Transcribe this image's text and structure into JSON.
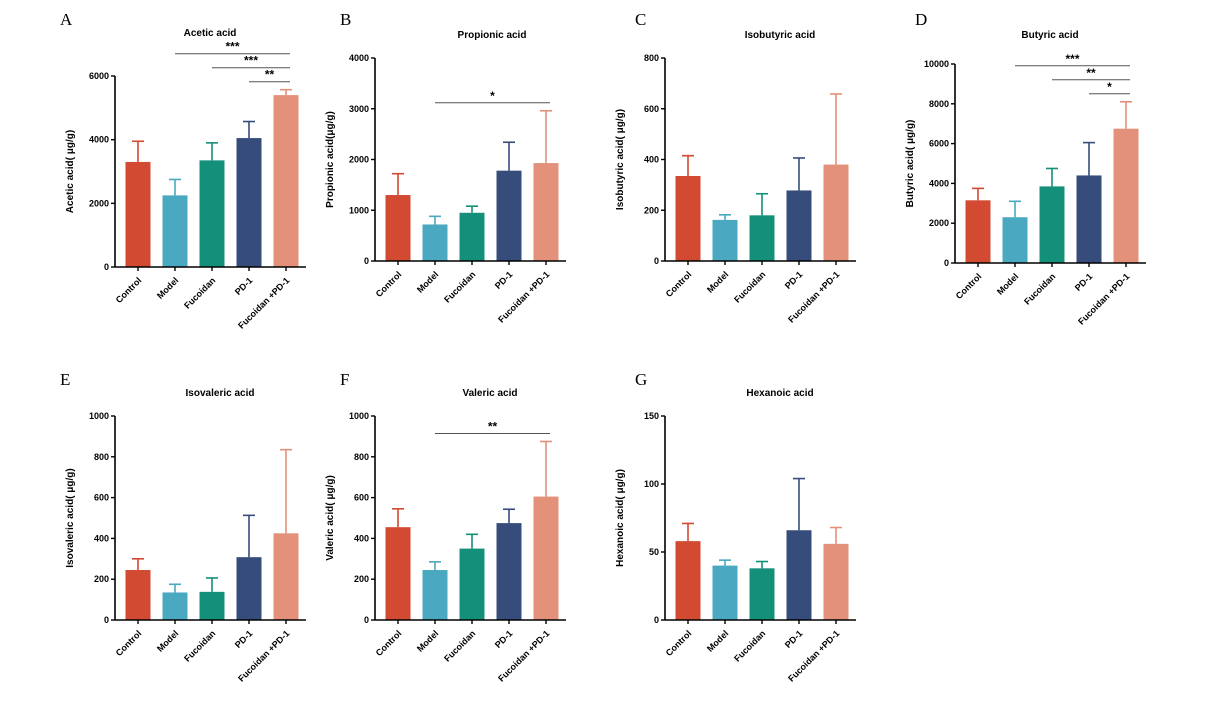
{
  "colors": {
    "Control": "#d24a32",
    "Model": "#4aa8c0",
    "Fucoidan": "#148f7a",
    "PD-1": "#364d7c",
    "Fucoidan +PD-1": "#e3917a"
  },
  "chart_data": [
    {
      "panel": "A",
      "type": "bar",
      "title": "Acetic acid",
      "ylabel": "Acetic acid( μg/g)",
      "categories": [
        "Control",
        "Model",
        "Fucoidan",
        "PD-1",
        "Fucoidan +PD-1"
      ],
      "values": [
        3300,
        2250,
        3350,
        4050,
        5400
      ],
      "errors": [
        650,
        500,
        550,
        520,
        170
      ],
      "ylim": [
        0,
        6000
      ],
      "yticks": [
        0,
        2000,
        4000,
        6000
      ],
      "significance": [
        {
          "from": 1,
          "to": 4,
          "label": "***"
        },
        {
          "from": 2,
          "to": 4,
          "label": "***"
        },
        {
          "from": 3,
          "to": 4,
          "label": "**"
        }
      ]
    },
    {
      "panel": "B",
      "type": "bar",
      "title": "Propionic acid",
      "ylabel": "Propionic acid(μg/g)",
      "categories": [
        "Control",
        "Model",
        "Fucoidan",
        "PD-1",
        "Fucoidan +PD-1"
      ],
      "values": [
        1300,
        720,
        950,
        1780,
        1930
      ],
      "errors": [
        420,
        160,
        130,
        560,
        1030
      ],
      "ylim": [
        0,
        4000
      ],
      "yticks": [
        0,
        1000,
        2000,
        3000,
        4000
      ],
      "significance": [
        {
          "from": 1,
          "to": 4,
          "label": "*"
        }
      ]
    },
    {
      "panel": "C",
      "type": "bar",
      "title": "Isobutyric acid",
      "ylabel": "Isobutyric acid( μg/g)",
      "categories": [
        "Control",
        "Model",
        "Fucoidan",
        "PD-1",
        "Fucoidan +PD-1"
      ],
      "values": [
        335,
        162,
        180,
        278,
        380
      ],
      "errors": [
        80,
        20,
        85,
        128,
        278
      ],
      "ylim": [
        0,
        800
      ],
      "yticks": [
        0,
        200,
        400,
        600,
        800
      ],
      "significance": []
    },
    {
      "panel": "D",
      "type": "bar",
      "title": "Butyric acid",
      "ylabel": "Butyric acid( μg/g)",
      "categories": [
        "Control",
        "Model",
        "Fucoidan",
        "PD-1",
        "Fucoidan +PD-1"
      ],
      "values": [
        3150,
        2300,
        3850,
        4400,
        6750
      ],
      "errors": [
        600,
        800,
        900,
        1650,
        1350
      ],
      "ylim": [
        0,
        10000
      ],
      "yticks": [
        0,
        2000,
        4000,
        6000,
        8000,
        10000
      ],
      "significance": [
        {
          "from": 1,
          "to": 4,
          "label": "***"
        },
        {
          "from": 2,
          "to": 4,
          "label": "**"
        },
        {
          "from": 3,
          "to": 4,
          "label": "*"
        }
      ]
    },
    {
      "panel": "E",
      "type": "bar",
      "title": "Isovaleric acid",
      "ylabel": "Isovaleric acid( μg/g)",
      "categories": [
        "Control",
        "Model",
        "Fucoidan",
        "PD-1",
        "Fucoidan +PD-1"
      ],
      "values": [
        245,
        135,
        138,
        308,
        425
      ],
      "errors": [
        55,
        40,
        68,
        205,
        410
      ],
      "ylim": [
        0,
        1000
      ],
      "yticks": [
        0,
        200,
        400,
        600,
        800,
        1000
      ],
      "significance": []
    },
    {
      "panel": "F",
      "type": "bar",
      "title": "Valeric acid",
      "ylabel": "Valeric acid( μg/g)",
      "categories": [
        "Control",
        "Model",
        "Fucoidan",
        "PD-1",
        "Fucoidan +PD-1"
      ],
      "values": [
        455,
        245,
        350,
        475,
        605
      ],
      "errors": [
        90,
        40,
        70,
        68,
        270
      ],
      "ylim": [
        0,
        1000
      ],
      "yticks": [
        0,
        200,
        400,
        600,
        800,
        1000
      ],
      "significance": [
        {
          "from": 1,
          "to": 4,
          "label": "**"
        }
      ]
    },
    {
      "panel": "G",
      "type": "bar",
      "title": "Hexanoic acid",
      "ylabel": "Hexanoic acid( μg/g)",
      "categories": [
        "Control",
        "Model",
        "Fucoidan",
        "PD-1",
        "Fucoidan +PD-1"
      ],
      "values": [
        58,
        40,
        38,
        66,
        56
      ],
      "errors": [
        13,
        4,
        5,
        38,
        12
      ],
      "ylim": [
        0,
        150
      ],
      "yticks": [
        0,
        50,
        100,
        150
      ],
      "significance": []
    }
  ]
}
